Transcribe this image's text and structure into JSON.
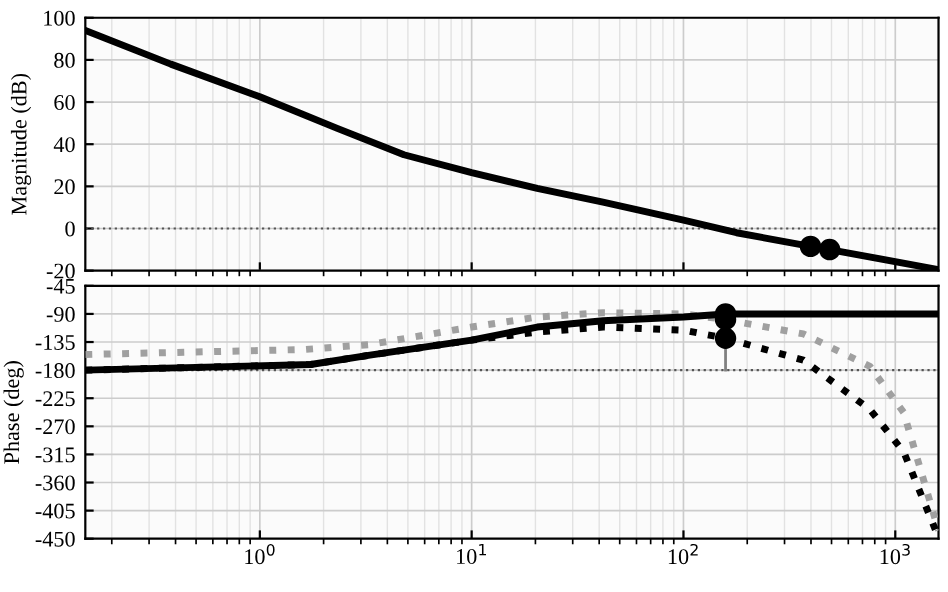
{
  "chart_data": [
    {
      "type": "line",
      "ylabel": "Magnitude (dB)",
      "log": "x",
      "xlim": [
        0.15,
        1600
      ],
      "ylim": [
        -20,
        100
      ],
      "yticks": [
        -20,
        0,
        20,
        40,
        60,
        80,
        100
      ],
      "xticks": [
        1,
        10,
        100,
        1000
      ],
      "tick_labels": "y",
      "grid": true,
      "ref_lines": [
        {
          "axis": "y",
          "value": 0,
          "color": "#555555",
          "line_style": "dotted"
        }
      ],
      "series": [
        {
          "color": "#000000",
          "line_style": "solid",
          "marker": "none",
          "x": [
            0.15,
            0.38,
            1,
            2.32,
            4.79,
            10,
            20.4,
            41.7,
            100,
            178,
            398,
            490,
            1600
          ],
          "values": [
            94,
            78,
            62.5,
            47.5,
            35,
            26.5,
            19,
            12.5,
            4,
            -2,
            -8.5,
            -10,
            -19.5
          ]
        },
        {
          "type": "scatter",
          "color": "#000000",
          "marker": "circle",
          "x": [
            398,
            490
          ],
          "values": [
            -8.5,
            -10
          ]
        }
      ]
    },
    {
      "type": "line",
      "ylabel": "Phase (deg)",
      "log": "x",
      "xlim": [
        0.15,
        1600
      ],
      "ylim": [
        -450,
        -45
      ],
      "yticks": [
        -450,
        -405,
        -360,
        -315,
        -270,
        -225,
        -180,
        -135,
        -90,
        -45
      ],
      "xticks": [
        {
          "value": 1,
          "label": "10$^{0}$"
        },
        {
          "value": 10,
          "label": "10$^{1}$"
        },
        {
          "value": 100,
          "label": "10$^{2}$"
        },
        {
          "value": 1000,
          "label": "10$^{3}$"
        }
      ],
      "grid": true,
      "ref_lines": [
        {
          "axis": "y",
          "value": -180,
          "color": "#555555",
          "line_style": "dotted"
        }
      ],
      "series": [
        {
          "color": "#a0a0a0",
          "line_style": "dotted",
          "marker": "none",
          "x": [
            0.15,
            1.62,
            3.31,
            10,
            20.4,
            41.7,
            100,
            158,
            368,
            759,
            1096,
            1600
          ],
          "values": [
            -155,
            -147,
            -139,
            -111,
            -95,
            -88,
            -90,
            -99,
            -122,
            -174,
            -248,
            -437
          ]
        },
        {
          "color": "#000000",
          "line_style": "dotted",
          "marker": "none",
          "x": [
            0.15,
            1.74,
            3.31,
            10,
            20.4,
            41.7,
            100,
            158,
            368,
            759,
            1096,
            1600
          ],
          "values": [
            -180,
            -171,
            -156,
            -132,
            -119,
            -111,
            -116,
            -129,
            -164,
            -243,
            -311,
            -448
          ]
        },
        {
          "color": "#000000",
          "line_style": "solid",
          "marker": "none",
          "x": [
            0.15,
            1.74,
            3.31,
            10,
            20.4,
            41.7,
            100,
            158,
            1600
          ],
          "values": [
            -180,
            -171,
            -156,
            -132,
            -111,
            -101,
            -95,
            -90,
            -90
          ]
        },
        {
          "color": "#808080",
          "line_style": "solid",
          "marker": "none",
          "x": [
            158,
            158
          ],
          "values": [
            -129,
            -180
          ]
        },
        {
          "type": "scatter",
          "color": "#000000",
          "marker": "circle",
          "x": [
            158,
            158,
            158
          ],
          "values": [
            -90,
            -99,
            -129
          ]
        }
      ]
    }
  ]
}
